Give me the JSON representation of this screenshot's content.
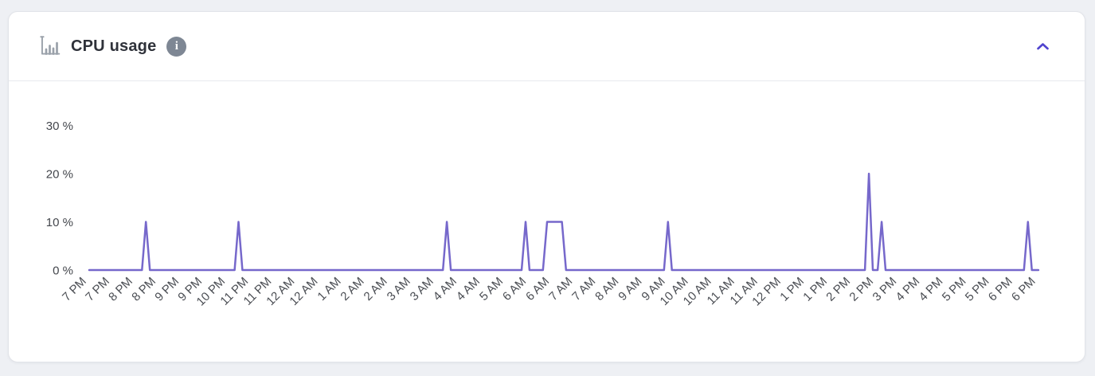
{
  "header": {
    "title": "CPU usage",
    "chart_icon": "bar-chart-icon",
    "info_icon": "info-icon",
    "collapse_icon": "chevron-up-icon"
  },
  "colors": {
    "line": "#7668cb",
    "accent_chevron": "#4f43ce",
    "icon_gray": "#9aa1aa",
    "info_badge_bg": "#7e8794",
    "axis_text": "#46494f",
    "card_bg": "#ffffff",
    "page_bg": "#eef0f4"
  },
  "chart_data": {
    "type": "line",
    "title": "CPU usage",
    "ylabel": "",
    "xlabel": "",
    "unit": "%",
    "grid": false,
    "legend": false,
    "ylim": [
      0,
      35
    ],
    "y_values": [
      30,
      20,
      10,
      0
    ],
    "y_ticks": [
      "30 %",
      "20 %",
      "10 %",
      "0 %"
    ],
    "x_ticks": [
      "7 PM",
      "7 PM",
      "8 PM",
      "8 PM",
      "9 PM",
      "9 PM",
      "10 PM",
      "11 PM",
      "11 PM",
      "12 AM",
      "12 AM",
      "1 AM",
      "2 AM",
      "2 AM",
      "3 AM",
      "3 AM",
      "4 AM",
      "4 AM",
      "5 AM",
      "6 AM",
      "6 AM",
      "7 AM",
      "7 AM",
      "8 AM",
      "9 AM",
      "9 AM",
      "10 AM",
      "10 AM",
      "11 AM",
      "11 AM",
      "12 PM",
      "1 PM",
      "1 PM",
      "2 PM",
      "2 PM",
      "3 PM",
      "4 PM",
      "4 PM",
      "5 PM",
      "5 PM",
      "6 PM",
      "6 PM"
    ],
    "points_x_unit": "fractional x-axis tick index (0 = first '7 PM' tick, 41 = last '6 PM' tick)",
    "series": [
      {
        "name": "CPU usage %",
        "points": [
          [
            0,
            0
          ],
          [
            2.28,
            0
          ],
          [
            2.45,
            10
          ],
          [
            2.62,
            0
          ],
          [
            6.28,
            0
          ],
          [
            6.45,
            10
          ],
          [
            6.62,
            0
          ],
          [
            15.28,
            0
          ],
          [
            15.45,
            10
          ],
          [
            15.62,
            0
          ],
          [
            18.68,
            0
          ],
          [
            18.85,
            10
          ],
          [
            19.02,
            0
          ],
          [
            19.6,
            0
          ],
          [
            19.78,
            10
          ],
          [
            20.42,
            10
          ],
          [
            20.6,
            0
          ],
          [
            24.83,
            0
          ],
          [
            25.0,
            10
          ],
          [
            25.17,
            0
          ],
          [
            33.51,
            0
          ],
          [
            33.68,
            20
          ],
          [
            33.85,
            0
          ],
          [
            34.06,
            0
          ],
          [
            34.23,
            10
          ],
          [
            34.4,
            0
          ],
          [
            40.38,
            0
          ],
          [
            40.55,
            10
          ],
          [
            40.72,
            0
          ],
          [
            41,
            0
          ]
        ]
      }
    ]
  }
}
